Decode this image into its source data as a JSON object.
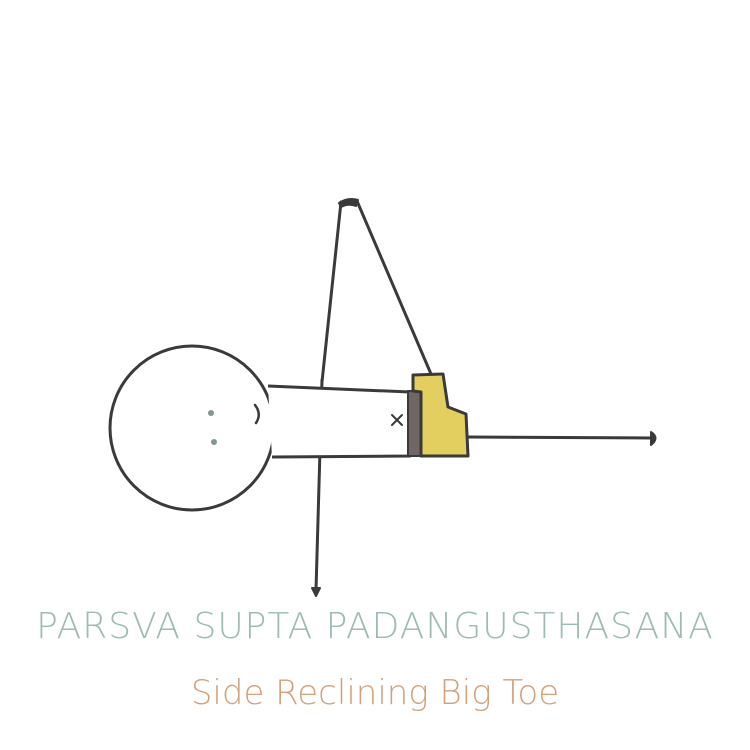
{
  "pose": {
    "sanskrit_name": "PARSVA SUPTA PADANGUSTHASANA",
    "english_name": "Side Reclining Big Toe"
  },
  "colors": {
    "outline": "#3a3a3a",
    "face_dots": "#7f9a90",
    "belt_band": "#6f6666",
    "hands": "#e3cf5f",
    "sanskrit_text": "#9dbbb0",
    "english_text": "#d4a07a"
  }
}
